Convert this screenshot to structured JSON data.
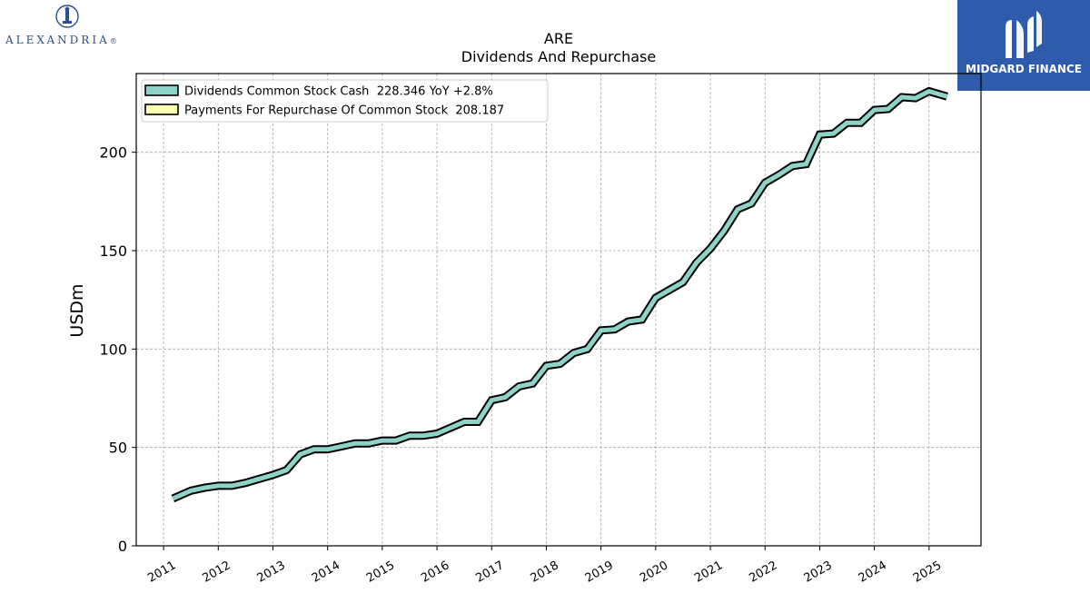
{
  "branding": {
    "left_logo": {
      "name": "ALEXANDRIA",
      "suffix": "®",
      "icon": "lighthouse-seal-icon"
    },
    "right_logo": {
      "name": "MIDGARD FINANCE",
      "icon": "midgard-m-icon",
      "bg_color": "#2e5bac"
    }
  },
  "chart_data": {
    "type": "line",
    "title": "ARE",
    "subtitle": "Dividends And Repurchase",
    "ylabel": "USDm",
    "xlabel": "",
    "ylim": [
      0,
      240
    ],
    "yticks": [
      0,
      50,
      100,
      150,
      200
    ],
    "xlim": [
      2010.5,
      2025.95
    ],
    "xticks": [
      "2011",
      "2012",
      "2013",
      "2014",
      "2015",
      "2016",
      "2017",
      "2018",
      "2019",
      "2020",
      "2021",
      "2022",
      "2023",
      "2024",
      "2025"
    ],
    "grid": true,
    "legend_position": "top-left",
    "series": [
      {
        "name": "Dividends Common Stock Cash",
        "legend_label": "Dividends Common Stock Cash  228.346 YoY +2.8%",
        "color": "#8dd3c7",
        "x": [
          2011.17,
          2011.5,
          2011.75,
          2012.0,
          2012.25,
          2012.5,
          2012.75,
          2013.0,
          2013.25,
          2013.5,
          2013.75,
          2014.0,
          2014.25,
          2014.5,
          2014.75,
          2015.0,
          2015.25,
          2015.5,
          2015.75,
          2016.0,
          2016.25,
          2016.5,
          2016.75,
          2017.0,
          2017.25,
          2017.5,
          2017.75,
          2018.0,
          2018.25,
          2018.5,
          2018.75,
          2019.0,
          2019.25,
          2019.5,
          2019.75,
          2020.0,
          2020.25,
          2020.5,
          2020.75,
          2021.0,
          2021.25,
          2021.5,
          2021.75,
          2022.0,
          2022.25,
          2022.5,
          2022.75,
          2023.0,
          2023.25,
          2023.5,
          2023.75,
          2024.0,
          2024.25,
          2024.5,
          2024.75,
          2025.0,
          2025.33
        ],
        "values": [
          24,
          28,
          29.5,
          30.5,
          30.5,
          32,
          34,
          36,
          38.5,
          46.5,
          49,
          49,
          50.5,
          52,
          52,
          53.5,
          53.5,
          56,
          56,
          57,
          60,
          63,
          63,
          74,
          75.5,
          81,
          82.5,
          91.5,
          92.5,
          98,
          100,
          109.5,
          110,
          114,
          115,
          126,
          130,
          134,
          144,
          151,
          160,
          171,
          174,
          184.5,
          188.5,
          193,
          194,
          209,
          209.5,
          215,
          215,
          221.5,
          222,
          228,
          227.5,
          231,
          228.3
        ]
      },
      {
        "name": "Payments For Repurchase Of Common Stock",
        "legend_label": "Payments For Repurchase Of Common Stock  208.187",
        "color": "#ffffb3",
        "x": [],
        "values": []
      }
    ]
  }
}
